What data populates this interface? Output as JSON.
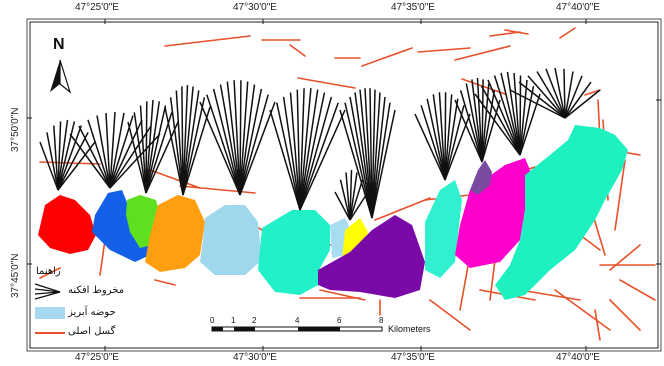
{
  "map": {
    "top_longitudes": [
      "47°25'0\"E",
      "47°30'0\"E",
      "47°35'0\"E",
      "47°40'0\"E"
    ],
    "bottom_longitudes": [
      "47°25'0\"E",
      "47°30'0\"E",
      "47°35'0\"E",
      "47°40'0\"E"
    ],
    "left_latitudes": [
      "37°50'0\"N",
      "37°45'0\"N"
    ],
    "north_label": "N",
    "legend": {
      "title": "راهنما",
      "items": [
        {
          "label": "مخروط افکنه",
          "symbol": "fan-cone"
        },
        {
          "label": "حوضه آبریز",
          "symbol": "basin",
          "color": "#a8d8f0"
        },
        {
          "label": "گسل اصلی",
          "symbol": "fault-line",
          "color": "#e8502a"
        }
      ]
    },
    "scale": {
      "ticks": [
        "0",
        "1",
        "2",
        "4",
        "6",
        "8"
      ],
      "unit": "Kilometers"
    },
    "colors": {
      "fault": "#e8502a",
      "basins": [
        "#ff0000",
        "#1560e8",
        "#5ee020",
        "#ff9f10",
        "#9fd8ec",
        "#22f0c8",
        "#a8dcf0",
        "#ffff00",
        "#7a0aa8",
        "#30f0d0",
        "#ff00cc",
        "#7a4aa0",
        "#1ef0c0"
      ]
    }
  }
}
